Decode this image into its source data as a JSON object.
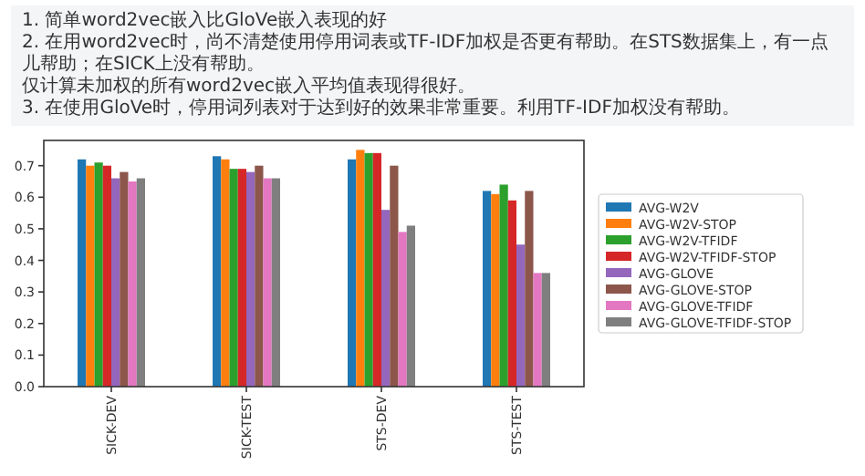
{
  "chart_data": {
    "type": "bar",
    "annotations": [
      "1. 简单word2vec嵌入比GloVe嵌入表现的好",
      "2. 在用word2vec时，尚不清楚使用停用词表或TF-IDF加权是否更有帮助。在STS数据集上，有一点儿帮助；在SICK上没有帮助。",
      "仅计算未加权的所有word2vec嵌入平均值表现得很好。",
      "3. 在使用GloVe时，停用词列表对于达到好的效果非常重要。利用TF-IDF加权没有帮助。"
    ],
    "categories": [
      "SICK-DEV",
      "SICK-TEST",
      "STS-DEV",
      "STS-TEST"
    ],
    "series": [
      {
        "name": "AVG-W2V",
        "color": "#1f77b4",
        "values": [
          0.72,
          0.73,
          0.72,
          0.62
        ]
      },
      {
        "name": "AVG-W2V-STOP",
        "color": "#ff7f0e",
        "values": [
          0.7,
          0.72,
          0.75,
          0.61
        ]
      },
      {
        "name": "AVG-W2V-TFIDF",
        "color": "#2ca02c",
        "values": [
          0.71,
          0.69,
          0.74,
          0.64
        ]
      },
      {
        "name": "AVG-W2V-TFIDF-STOP",
        "color": "#d62728",
        "values": [
          0.7,
          0.69,
          0.74,
          0.59
        ]
      },
      {
        "name": "AVG-GLOVE",
        "color": "#9467bd",
        "values": [
          0.66,
          0.68,
          0.56,
          0.45
        ]
      },
      {
        "name": "AVG-GLOVE-STOP",
        "color": "#8c564b",
        "values": [
          0.68,
          0.7,
          0.7,
          0.62
        ]
      },
      {
        "name": "AVG-GLOVE-TFIDF",
        "color": "#e377c2",
        "values": [
          0.65,
          0.66,
          0.49,
          0.36
        ]
      },
      {
        "name": "AVG-GLOVE-TFIDF-STOP",
        "color": "#7f7f7f",
        "values": [
          0.66,
          0.66,
          0.51,
          0.36
        ]
      }
    ],
    "ylim": [
      0,
      0.78
    ],
    "yticks": [
      {
        "value": 0,
        "label": "0.0"
      },
      {
        "value": 0.1,
        "label": "0.1"
      },
      {
        "value": 0.2,
        "label": "0.2"
      },
      {
        "value": 0.3,
        "label": "0.3"
      },
      {
        "value": 0.4,
        "label": "0.4"
      },
      {
        "value": 0.5,
        "label": "0.5"
      },
      {
        "value": 0.6,
        "label": "0.6"
      },
      {
        "value": 0.7,
        "label": "0.7"
      }
    ],
    "legend": "right",
    "grid": false
  }
}
